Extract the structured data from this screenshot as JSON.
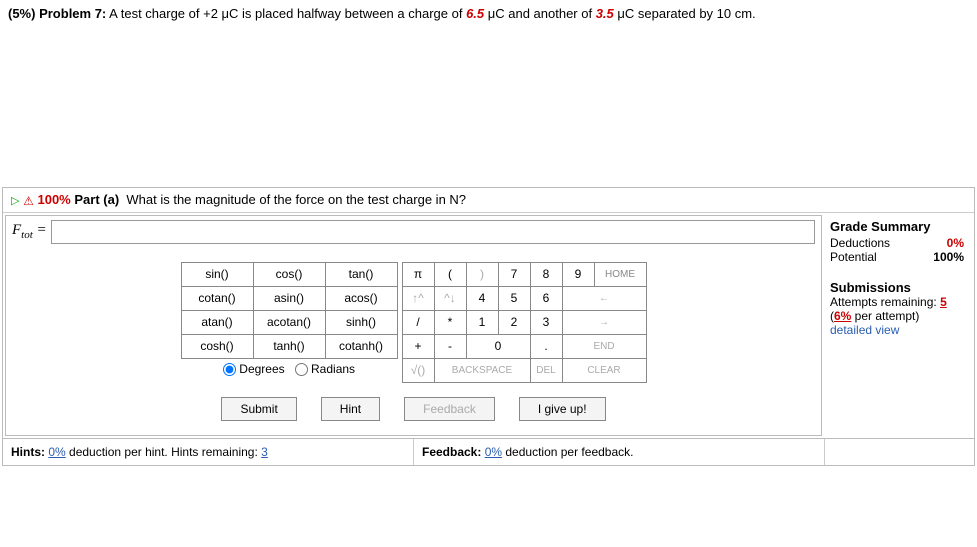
{
  "problem": {
    "pct": "(5%)",
    "label": "Problem 7:",
    "text_pre": " A test charge of +2 μC is placed halfway between a charge of ",
    "val1": "6.5",
    "text_mid1": " μC and another of ",
    "val2": "3.5",
    "text_mid2": " μC separated by 10 cm."
  },
  "part": {
    "pct": "100%",
    "label": "Part (a)",
    "question": "What is the magnitude of the force on the test charge in N?",
    "answer_var": "F",
    "answer_sub": "tot",
    "answer_value": ""
  },
  "funcs": {
    "r1c1": "sin()",
    "r1c2": "cos()",
    "r1c3": "tan()",
    "r2c1": "cotan()",
    "r2c2": "asin()",
    "r2c3": "acos()",
    "r3c1": "atan()",
    "r3c2": "acotan()",
    "r3c3": "sinh()",
    "r4c1": "cosh()",
    "r4c2": "tanh()",
    "r4c3": "cotanh()"
  },
  "mode": {
    "degrees": "Degrees",
    "radians": "Radians"
  },
  "keys": {
    "pi": "π",
    "lpar": "(",
    "rpar": ")",
    "k7": "7",
    "k8": "8",
    "k9": "9",
    "home": "HOME",
    "up": "↑^",
    "down": "^↓",
    "k4": "4",
    "k5": "5",
    "k6": "6",
    "left": "←",
    "div": "/",
    "mul": "*",
    "k1": "1",
    "k2": "2",
    "k3": "3",
    "right": "→",
    "plus": "+",
    "minus": "-",
    "k0": "0",
    "dot": ".",
    "end": "END",
    "sqrt": "√()",
    "bksp": "BACKSPACE",
    "del": "DEL",
    "clear": "CLEAR"
  },
  "actions": {
    "submit": "Submit",
    "hint": "Hint",
    "feedback": "Feedback",
    "giveup": "I give up!"
  },
  "grade": {
    "title": "Grade Summary",
    "ded_label": "Deductions",
    "ded_val": "0%",
    "pot_label": "Potential",
    "pot_val": "100%"
  },
  "subs": {
    "title": "Submissions",
    "attempts_label": "Attempts remaining:",
    "attempts_val": "5",
    "per_attempt_pre": "(",
    "per_attempt_pct": "6%",
    "per_attempt_post": " per attempt)",
    "link": "detailed view"
  },
  "footer": {
    "hints_label": "Hints:",
    "hints_pct": "0%",
    "hints_mid": " deduction per hint. Hints remaining: ",
    "hints_remaining": "3",
    "fb_label": "Feedback:",
    "fb_pct": "0%",
    "fb_post": " deduction per feedback."
  }
}
